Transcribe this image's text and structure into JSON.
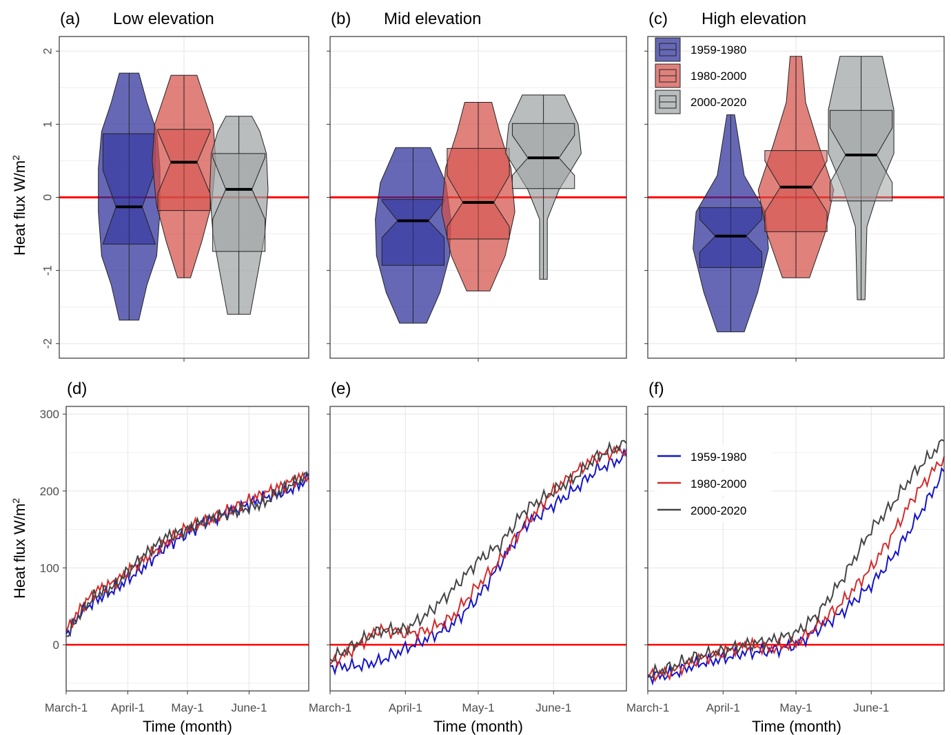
{
  "colors": {
    "series": [
      "#1a1aa8",
      "#e0554f",
      "#8e9494"
    ],
    "box_fill": [
      "#2b2e9a",
      "#d4504a",
      "#9ea3a3"
    ],
    "line_series": [
      "#1414c8",
      "#d42a2a",
      "#444444"
    ],
    "zero_line": "#ff0000",
    "grid": "#ebebeb"
  },
  "labels": {
    "ylabel_top": "Heat flux W/m",
    "ylabel_top_sup": "2",
    "ylabel_bottom": "Heat flux W/m",
    "ylabel_bottom_sup": "2",
    "xlabel": "Time (month)"
  },
  "chart_data": [
    {
      "type": "violin",
      "label": "(a)",
      "title": "Low elevation",
      "ylim": [
        -2.2,
        2.2
      ],
      "yticks": [
        -2,
        -1,
        0,
        1,
        2
      ],
      "hline": 0,
      "series": [
        {
          "name": "1959-1980",
          "min": -1.68,
          "q1": -0.64,
          "median": -0.13,
          "q3": 0.87,
          "max": 1.7,
          "notch_low": -0.64,
          "notch_high": 0.37,
          "density": [
            [
              -1.68,
              0.3
            ],
            [
              -1.2,
              0.55
            ],
            [
              -0.8,
              0.85
            ],
            [
              -0.2,
              0.95
            ],
            [
              0.4,
              0.95
            ],
            [
              0.9,
              0.85
            ],
            [
              1.3,
              0.55
            ],
            [
              1.7,
              0.3
            ]
          ]
        },
        {
          "name": "1980-2000",
          "min": -1.1,
          "q1": -0.18,
          "median": 0.48,
          "q3": 0.93,
          "max": 1.67,
          "notch_low": 0.05,
          "notch_high": 0.9,
          "density": [
            [
              -1.1,
              0.2
            ],
            [
              -0.6,
              0.55
            ],
            [
              -0.1,
              0.85
            ],
            [
              0.5,
              0.98
            ],
            [
              1.0,
              0.9
            ],
            [
              1.4,
              0.6
            ],
            [
              1.67,
              0.4
            ]
          ]
        },
        {
          "name": "2000-2020",
          "min": -1.6,
          "q1": -0.74,
          "median": 0.11,
          "q3": 0.6,
          "max": 1.11,
          "notch_low": -0.3,
          "notch_high": 0.55,
          "density": [
            [
              -1.6,
              0.35
            ],
            [
              -1.0,
              0.6
            ],
            [
              -0.5,
              0.8
            ],
            [
              0.1,
              0.9
            ],
            [
              0.6,
              0.85
            ],
            [
              0.9,
              0.65
            ],
            [
              1.11,
              0.4
            ]
          ]
        }
      ]
    },
    {
      "type": "violin",
      "label": "(b)",
      "title": "Mid elevation",
      "ylim": [
        -2.2,
        2.2
      ],
      "yticks": [
        -2,
        -1,
        0,
        1,
        2
      ],
      "hline": 0,
      "series": [
        {
          "name": "1959-1980",
          "min": -1.72,
          "q1": -0.93,
          "median": -0.32,
          "q3": -0.03,
          "max": 0.68,
          "notch_low": -0.55,
          "notch_high": -0.05,
          "density": [
            [
              -1.72,
              0.35
            ],
            [
              -1.3,
              0.7
            ],
            [
              -0.8,
              0.95
            ],
            [
              -0.3,
              0.98
            ],
            [
              0.2,
              0.85
            ],
            [
              0.68,
              0.45
            ]
          ]
        },
        {
          "name": "1980-2000",
          "min": -1.28,
          "q1": -0.57,
          "median": -0.07,
          "q3": 0.67,
          "max": 1.3,
          "notch_low": -0.4,
          "notch_high": 0.3,
          "density": [
            [
              -1.28,
              0.3
            ],
            [
              -0.8,
              0.7
            ],
            [
              -0.2,
              0.95
            ],
            [
              0.4,
              0.85
            ],
            [
              0.9,
              0.55
            ],
            [
              1.3,
              0.35
            ]
          ]
        },
        {
          "name": "2000-2020",
          "min": -1.12,
          "q1": 0.12,
          "median": 0.54,
          "q3": 1.01,
          "max": 1.4,
          "notch_low": 0.3,
          "notch_high": 0.85,
          "density": [
            [
              -1.12,
              0.1
            ],
            [
              -0.3,
              0.1
            ],
            [
              0.1,
              0.4
            ],
            [
              0.6,
              0.98
            ],
            [
              1.0,
              0.9
            ],
            [
              1.4,
              0.55
            ]
          ]
        }
      ]
    },
    {
      "type": "violin",
      "label": "(c)",
      "title": "High elevation",
      "ylim": [
        -2.2,
        2.2
      ],
      "yticks": [
        -2,
        -1,
        0,
        1,
        2
      ],
      "hline": 0,
      "legend": "top-left",
      "series": [
        {
          "name": "1959-1980",
          "min": -1.84,
          "q1": -0.96,
          "median": -0.53,
          "q3": -0.14,
          "max": 1.13,
          "notch_low": -0.75,
          "notch_high": -0.3,
          "density": [
            [
              -1.84,
              0.35
            ],
            [
              -1.3,
              0.7
            ],
            [
              -0.7,
              0.98
            ],
            [
              -0.2,
              0.9
            ],
            [
              0.3,
              0.35
            ],
            [
              1.13,
              0.1
            ]
          ]
        },
        {
          "name": "1980-2000",
          "min": -1.1,
          "q1": -0.47,
          "median": 0.14,
          "q3": 0.64,
          "max": 1.93,
          "notch_low": -0.2,
          "notch_high": 0.5,
          "density": [
            [
              -1.1,
              0.35
            ],
            [
              -0.5,
              0.75
            ],
            [
              0.1,
              0.98
            ],
            [
              0.7,
              0.6
            ],
            [
              1.3,
              0.25
            ],
            [
              1.93,
              0.15
            ]
          ]
        },
        {
          "name": "2000-2020",
          "min": -1.4,
          "q1": -0.05,
          "median": 0.58,
          "q3": 1.19,
          "max": 1.93,
          "notch_low": 0.2,
          "notch_high": 0.95,
          "density": [
            [
              -1.4,
              0.1
            ],
            [
              -0.4,
              0.15
            ],
            [
              0.1,
              0.45
            ],
            [
              0.6,
              0.85
            ],
            [
              1.2,
              0.85
            ],
            [
              1.93,
              0.55
            ]
          ]
        }
      ]
    },
    {
      "type": "line",
      "label": "(d)",
      "x": [
        "March-1",
        "April-1",
        "May-1",
        "June-1"
      ],
      "xticks_day": [
        0,
        31,
        61,
        92
      ],
      "xlim": [
        0,
        122
      ],
      "ylim": [
        -60,
        310
      ],
      "yticks": [
        0,
        100,
        200,
        300
      ],
      "hline": 0,
      "series": [
        {
          "name": "1959-1980",
          "values": [
            [
              0,
              14
            ],
            [
              8,
              44
            ],
            [
              15,
              58
            ],
            [
              25,
              73
            ],
            [
              31,
              85
            ],
            [
              40,
              103
            ],
            [
              50,
              128
            ],
            [
              61,
              145
            ],
            [
              70,
              160
            ],
            [
              80,
              170
            ],
            [
              92,
              183
            ],
            [
              100,
              192
            ],
            [
              110,
              198
            ],
            [
              122,
              215
            ]
          ]
        },
        {
          "name": "1980-2000",
          "values": [
            [
              0,
              18
            ],
            [
              8,
              50
            ],
            [
              15,
              70
            ],
            [
              25,
              82
            ],
            [
              31,
              95
            ],
            [
              40,
              113
            ],
            [
              50,
              133
            ],
            [
              61,
              152
            ],
            [
              70,
              160
            ],
            [
              80,
              172
            ],
            [
              92,
              188
            ],
            [
              100,
              197
            ],
            [
              110,
              208
            ],
            [
              122,
              222
            ]
          ]
        },
        {
          "name": "2000-2020",
          "values": [
            [
              0,
              10
            ],
            [
              8,
              45
            ],
            [
              15,
              65
            ],
            [
              25,
              78
            ],
            [
              31,
              96
            ],
            [
              40,
              118
            ],
            [
              50,
              140
            ],
            [
              61,
              150
            ],
            [
              70,
              162
            ],
            [
              80,
              170
            ],
            [
              92,
              178
            ],
            [
              100,
              185
            ],
            [
              110,
              205
            ],
            [
              122,
              220
            ]
          ]
        }
      ]
    },
    {
      "type": "line",
      "label": "(e)",
      "x": [
        "March-1",
        "April-1",
        "May-1",
        "June-1"
      ],
      "xticks_day": [
        0,
        31,
        61,
        92
      ],
      "xlim": [
        0,
        122
      ],
      "ylim": [
        -60,
        310
      ],
      "yticks": [
        0,
        100,
        200,
        300
      ],
      "hline": 0,
      "series": [
        {
          "name": "1959-1980",
          "values": [
            [
              0,
              -28
            ],
            [
              10,
              -28
            ],
            [
              20,
              -22
            ],
            [
              31,
              -5
            ],
            [
              40,
              8
            ],
            [
              50,
              25
            ],
            [
              61,
              62
            ],
            [
              70,
              105
            ],
            [
              80,
              155
            ],
            [
              92,
              182
            ],
            [
              100,
              200
            ],
            [
              110,
              228
            ],
            [
              122,
              245
            ]
          ]
        },
        {
          "name": "1980-2000",
          "values": [
            [
              0,
              -25
            ],
            [
              10,
              -5
            ],
            [
              20,
              20
            ],
            [
              31,
              15
            ],
            [
              40,
              18
            ],
            [
              50,
              35
            ],
            [
              61,
              78
            ],
            [
              70,
              110
            ],
            [
              80,
              155
            ],
            [
              92,
              200
            ],
            [
              100,
              222
            ],
            [
              110,
              245
            ],
            [
              122,
              255
            ]
          ]
        },
        {
          "name": "2000-2020",
          "values": [
            [
              0,
              -20
            ],
            [
              10,
              0
            ],
            [
              20,
              18
            ],
            [
              31,
              20
            ],
            [
              40,
              40
            ],
            [
              50,
              70
            ],
            [
              61,
              110
            ],
            [
              70,
              130
            ],
            [
              80,
              175
            ],
            [
              92,
              200
            ],
            [
              100,
              215
            ],
            [
              110,
              245
            ],
            [
              122,
              262
            ]
          ]
        }
      ]
    },
    {
      "type": "line",
      "label": "(f)",
      "x": [
        "March-1",
        "April-1",
        "May-1",
        "June-1"
      ],
      "xticks_day": [
        0,
        31,
        61,
        92
      ],
      "xlim": [
        0,
        122
      ],
      "ylim": [
        -60,
        310
      ],
      "yticks": [
        0,
        100,
        200,
        300
      ],
      "hline": 0,
      "legend": "top-left",
      "series": [
        {
          "name": "1959-1980",
          "values": [
            [
              0,
              -42
            ],
            [
              10,
              -38
            ],
            [
              20,
              -25
            ],
            [
              31,
              -18
            ],
            [
              40,
              -10
            ],
            [
              50,
              -8
            ],
            [
              61,
              0
            ],
            [
              70,
              20
            ],
            [
              80,
              42
            ],
            [
              92,
              78
            ],
            [
              100,
              110
            ],
            [
              110,
              160
            ],
            [
              122,
              225
            ]
          ]
        },
        {
          "name": "1980-2000",
          "values": [
            [
              0,
              -40
            ],
            [
              10,
              -35
            ],
            [
              20,
              -20
            ],
            [
              31,
              -10
            ],
            [
              40,
              0
            ],
            [
              50,
              -5
            ],
            [
              61,
              2
            ],
            [
              70,
              25
            ],
            [
              80,
              55
            ],
            [
              92,
              100
            ],
            [
              100,
              140
            ],
            [
              110,
              195
            ],
            [
              122,
              245
            ]
          ]
        },
        {
          "name": "2000-2020",
          "values": [
            [
              0,
              -40
            ],
            [
              10,
              -28
            ],
            [
              20,
              -15
            ],
            [
              31,
              -8
            ],
            [
              40,
              0
            ],
            [
              50,
              5
            ],
            [
              61,
              15
            ],
            [
              70,
              40
            ],
            [
              80,
              85
            ],
            [
              92,
              150
            ],
            [
              100,
              180
            ],
            [
              110,
              225
            ],
            [
              122,
              265
            ]
          ]
        }
      ]
    }
  ]
}
